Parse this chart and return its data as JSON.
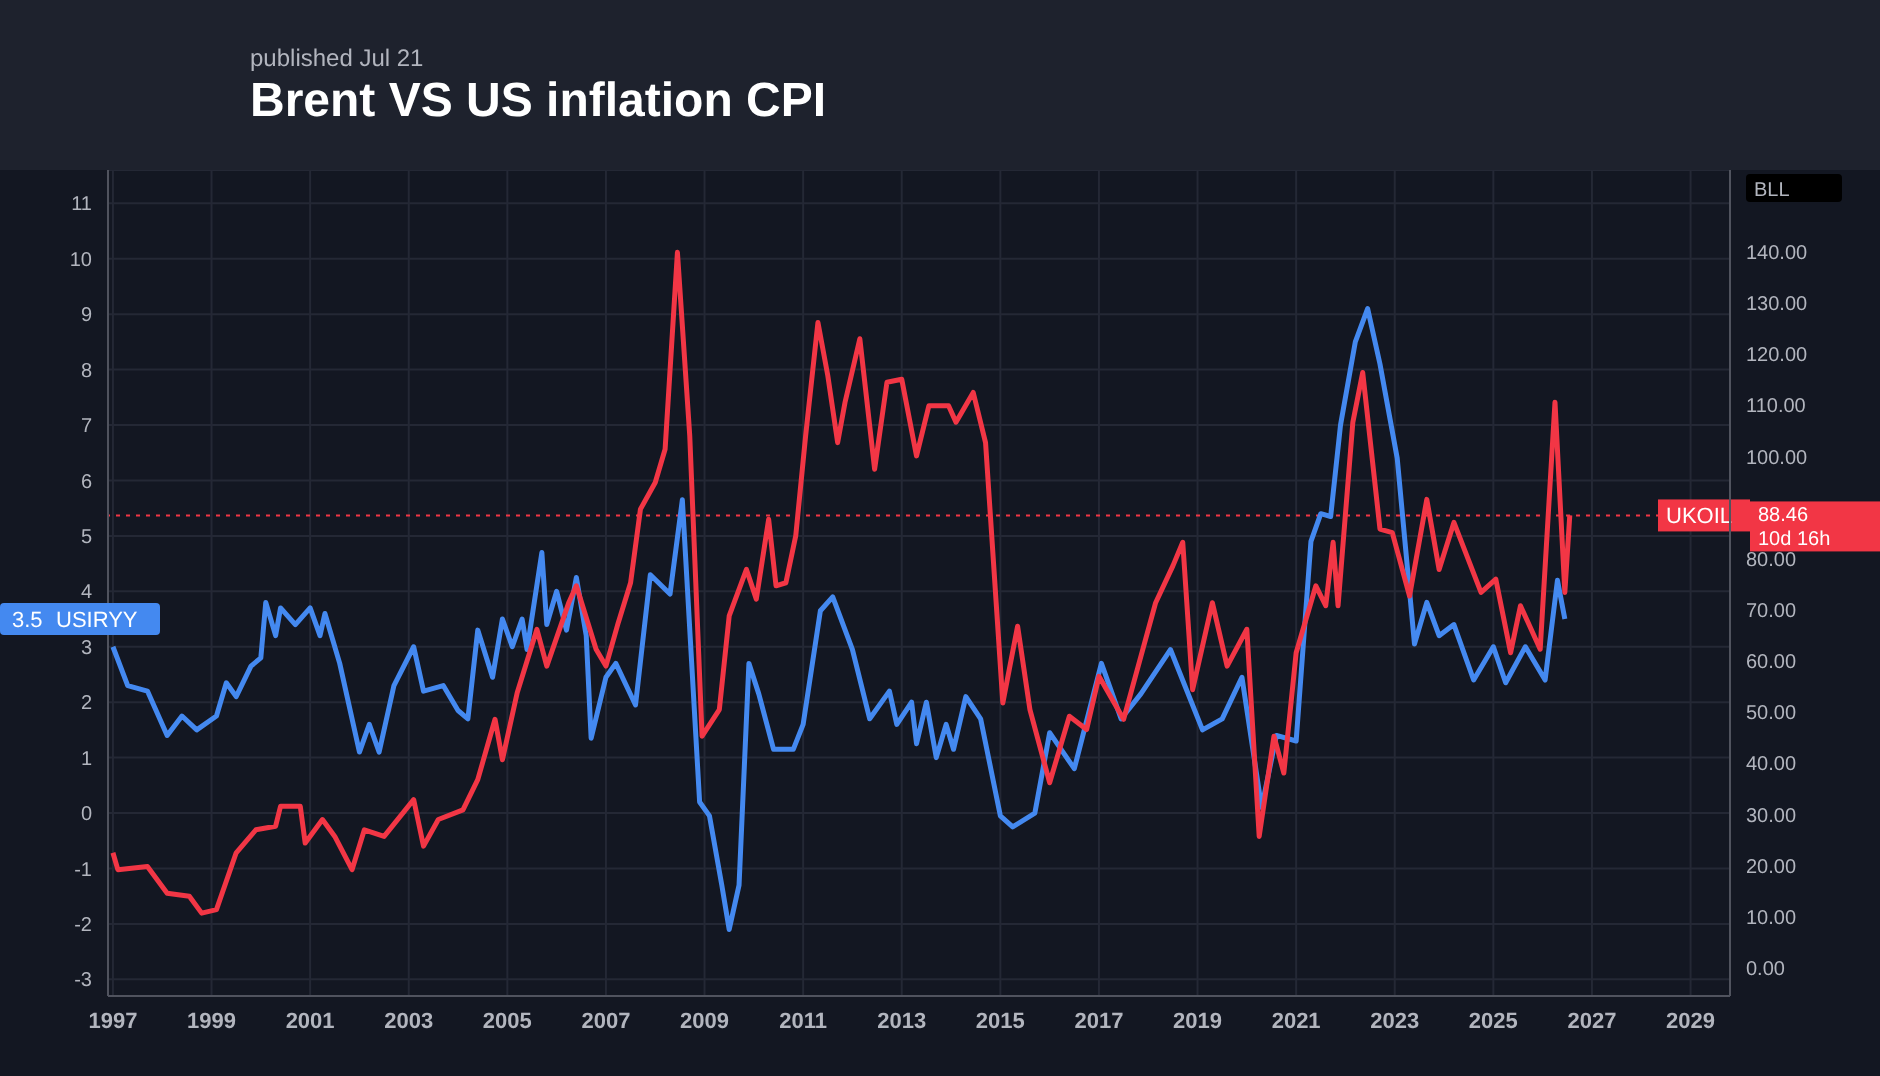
{
  "chart_data": {
    "type": "line",
    "title": "Brent VS US inflation CPI",
    "subtitle": "published Jul 21",
    "y2label": "BLL",
    "grid": true,
    "xlim": [
      1996.9,
      2029.8
    ],
    "xticks": [
      1997,
      1999,
      2001,
      2003,
      2005,
      2007,
      2009,
      2011,
      2013,
      2015,
      2017,
      2019,
      2021,
      2023,
      2025,
      2027,
      2029
    ],
    "ylim": [
      -3.3,
      11.6
    ],
    "yticks": [
      -3,
      -2,
      -1,
      0,
      1,
      2,
      3,
      4,
      5,
      6,
      7,
      8,
      9,
      10,
      11
    ],
    "y2lim": [
      -5.5,
      156
    ],
    "y2ticks": [
      {
        "value": 0,
        "label": "0.00"
      },
      {
        "value": 10,
        "label": "10.00"
      },
      {
        "value": 20,
        "label": "20.00"
      },
      {
        "value": 30,
        "label": "30.00"
      },
      {
        "value": 40,
        "label": "40.00"
      },
      {
        "value": 50,
        "label": "50.00"
      },
      {
        "value": 60,
        "label": "60.00"
      },
      {
        "value": 70,
        "label": "70.00"
      },
      {
        "value": 80,
        "label": "80.00"
      },
      {
        "value": 100,
        "label": "100.00"
      },
      {
        "value": 110,
        "label": "110.00"
      },
      {
        "value": 120,
        "label": "120.00"
      },
      {
        "value": 130,
        "label": "130.00"
      },
      {
        "value": 140,
        "label": "140.00"
      }
    ],
    "ref_lines": [
      {
        "axis": "y2",
        "value": 88.46,
        "label": "88.46",
        "color": "#f23645",
        "line_style": "dotted"
      }
    ],
    "annotations": [
      "3.5",
      "10d 16h"
    ],
    "series": [
      {
        "name": "USIRYY",
        "color": "#4489f0",
        "x": [
          1997.0,
          1997.3,
          1997.7,
          1998.1,
          1998.4,
          1998.7,
          1999.1,
          1999.3,
          1999.5,
          1999.8,
          2000.0,
          2000.1,
          2000.3,
          2000.4,
          2000.7,
          2001.0,
          2001.2,
          2001.3,
          2001.6,
          2002.0,
          2002.2,
          2002.4,
          2002.7,
          2003.1,
          2003.3,
          2003.7,
          2004.0,
          2004.2,
          2004.4,
          2004.7,
          2004.9,
          2005.1,
          2005.3,
          2005.4,
          2005.7,
          2005.8,
          2006.0,
          2006.2,
          2006.4,
          2006.6,
          2006.7,
          2007.0,
          2007.2,
          2007.6,
          2007.9,
          2008.3,
          2008.55,
          2008.9,
          2009.1,
          2009.35,
          2009.5,
          2009.7,
          2009.9,
          2010.1,
          2010.4,
          2010.8,
          2011.0,
          2011.35,
          2011.6,
          2012.0,
          2012.35,
          2012.75,
          2012.9,
          2013.2,
          2013.3,
          2013.5,
          2013.7,
          2013.9,
          2014.05,
          2014.3,
          2014.6,
          2015.0,
          2015.25,
          2015.7,
          2016.0,
          2016.5,
          2017.05,
          2017.45,
          2017.85,
          2018.45,
          2019.1,
          2019.5,
          2019.9,
          2020.3,
          2020.6,
          2021.0,
          2021.3,
          2021.5,
          2021.7,
          2021.9,
          2022.2,
          2022.45,
          2022.7,
          2023.05,
          2023.4,
          2023.65,
          2023.9,
          2024.2,
          2024.6,
          2025.0,
          2025.25,
          2025.65,
          2026.05,
          2026.3,
          2026.45
        ],
        "values": [
          3.0,
          2.3,
          2.2,
          1.4,
          1.75,
          1.5,
          1.75,
          2.35,
          2.1,
          2.65,
          2.8,
          3.8,
          3.2,
          3.7,
          3.4,
          3.7,
          3.2,
          3.6,
          2.7,
          1.1,
          1.6,
          1.1,
          2.3,
          3.0,
          2.2,
          2.3,
          1.85,
          1.7,
          3.3,
          2.45,
          3.5,
          3.0,
          3.5,
          2.95,
          4.7,
          3.4,
          4.0,
          3.3,
          4.25,
          3.2,
          1.35,
          2.45,
          2.7,
          1.95,
          4.3,
          3.95,
          5.65,
          0.2,
          -0.05,
          -1.3,
          -2.1,
          -1.3,
          2.7,
          2.15,
          1.15,
          1.15,
          1.6,
          3.65,
          3.9,
          2.95,
          1.7,
          2.2,
          1.6,
          2.0,
          1.25,
          2.0,
          1.0,
          1.6,
          1.15,
          2.1,
          1.7,
          -0.05,
          -0.25,
          0.0,
          1.45,
          0.8,
          2.7,
          1.7,
          2.15,
          2.95,
          1.5,
          1.7,
          2.45,
          0.1,
          1.4,
          1.3,
          4.9,
          5.4,
          5.35,
          7.0,
          8.5,
          9.1,
          8.1,
          6.4,
          3.05,
          3.8,
          3.2,
          3.4,
          2.4,
          3.0,
          2.35,
          3.0,
          2.4,
          4.2,
          3.5
        ]
      },
      {
        "name": "UKOIL",
        "color": "#f23645",
        "axis": "y2",
        "x": [
          1997.0,
          1997.1,
          1997.7,
          1998.1,
          1998.55,
          1998.8,
          1999.1,
          1999.5,
          1999.9,
          2000.3,
          2000.4,
          2000.8,
          2000.9,
          2001.25,
          2001.5,
          2001.85,
          2002.1,
          2002.5,
          2003.1,
          2003.3,
          2003.6,
          2004.1,
          2004.4,
          2004.75,
          2004.9,
          2005.2,
          2005.6,
          2005.8,
          2006.25,
          2006.4,
          2006.8,
          2007.0,
          2007.25,
          2007.5,
          2007.7,
          2008.0,
          2008.2,
          2008.45,
          2008.7,
          2008.95,
          2009.3,
          2009.5,
          2009.85,
          2010.05,
          2010.3,
          2010.45,
          2010.65,
          2010.85,
          2011.05,
          2011.3,
          2011.5,
          2011.7,
          2011.85,
          2012.15,
          2012.45,
          2012.7,
          2013.0,
          2013.3,
          2013.55,
          2013.95,
          2014.1,
          2014.45,
          2014.7,
          2015.05,
          2015.35,
          2015.6,
          2016.0,
          2016.4,
          2016.75,
          2017.0,
          2017.5,
          2018.15,
          2018.5,
          2018.7,
          2018.9,
          2019.3,
          2019.6,
          2020.0,
          2020.25,
          2020.55,
          2020.75,
          2021.0,
          2021.4,
          2021.6,
          2021.75,
          2021.85,
          2022.15,
          2022.35,
          2022.7,
          2022.95,
          2023.3,
          2023.65,
          2023.9,
          2024.2,
          2024.75,
          2025.05,
          2025.35,
          2025.55,
          2025.95,
          2026.25,
          2026.45,
          2026.55
        ],
        "values": [
          22.5,
          19.2,
          19.8,
          14.6,
          14.0,
          10.7,
          11.4,
          22.5,
          27.0,
          27.7,
          31.6,
          31.6,
          24.4,
          29.0,
          25.7,
          19.2,
          27.0,
          25.7,
          32.9,
          23.8,
          29.0,
          30.9,
          36.8,
          48.6,
          40.7,
          53.8,
          66.2,
          59.0,
          71.5,
          74.7,
          62.3,
          59.0,
          67.5,
          75.3,
          89.7,
          94.9,
          101.4,
          139.9,
          104.0,
          45.3,
          50.5,
          68.8,
          77.9,
          72.1,
          87.7,
          74.7,
          75.3,
          84.5,
          104.0,
          126.2,
          115.8,
          102.7,
          110.6,
          123.0,
          97.5,
          114.5,
          115.1,
          100.1,
          109.9,
          109.9,
          106.7,
          112.5,
          102.7,
          51.8,
          66.8,
          50.5,
          36.2,
          49.2,
          46.6,
          57.0,
          48.6,
          71.4,
          78.6,
          83.2,
          54.4,
          71.4,
          59.0,
          66.2,
          25.7,
          45.3,
          38.1,
          61.6,
          74.7,
          70.8,
          83.2,
          70.8,
          106.7,
          116.4,
          85.8,
          85.1,
          72.7,
          91.6,
          77.9,
          87.1,
          73.4,
          76.0,
          61.6,
          70.8,
          62.3,
          110.6,
          73.4,
          88.5
        ]
      }
    ]
  }
}
